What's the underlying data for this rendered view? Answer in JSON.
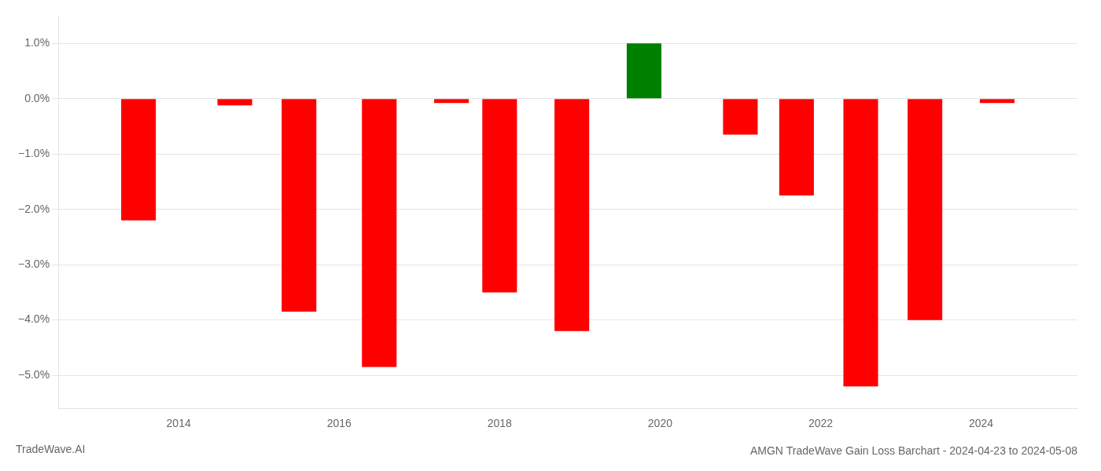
{
  "chart_data": {
    "type": "bar",
    "title": "AMGN TradeWave Gain Loss Barchart - 2024-04-23 to 2024-05-08",
    "annotations": [
      "TradeWave.AI"
    ],
    "x": [
      2013.5,
      2014.7,
      2015.5,
      2016.5,
      2017.4,
      2018.0,
      2018.9,
      2019.8,
      2021.0,
      2021.7,
      2022.5,
      2023.3,
      2024.2
    ],
    "values": [
      -2.2,
      -0.12,
      -3.85,
      -4.85,
      -0.08,
      -3.5,
      -4.2,
      1.0,
      -0.65,
      -1.75,
      -5.2,
      -4.0,
      -0.08
    ],
    "colors": [
      "red",
      "red",
      "red",
      "red",
      "red",
      "red",
      "red",
      "green",
      "red",
      "red",
      "red",
      "red",
      "red"
    ],
    "xlim": [
      2012.5,
      2025.2
    ],
    "xticks": [
      2014,
      2016,
      2018,
      2020,
      2022,
      2024
    ],
    "ylim": [
      -5.6,
      1.5
    ],
    "yticks": [
      {
        "value": 1.0,
        "label": "1.0%"
      },
      {
        "value": 0.0,
        "label": "0.0%"
      },
      {
        "value": -1.0,
        "label": "−1.0%"
      },
      {
        "value": -2.0,
        "label": "−2.0%"
      },
      {
        "value": -3.0,
        "label": "−3.0%"
      },
      {
        "value": -4.0,
        "label": "−4.0%"
      },
      {
        "value": -5.0,
        "label": "−5.0%"
      }
    ],
    "grid": true
  }
}
